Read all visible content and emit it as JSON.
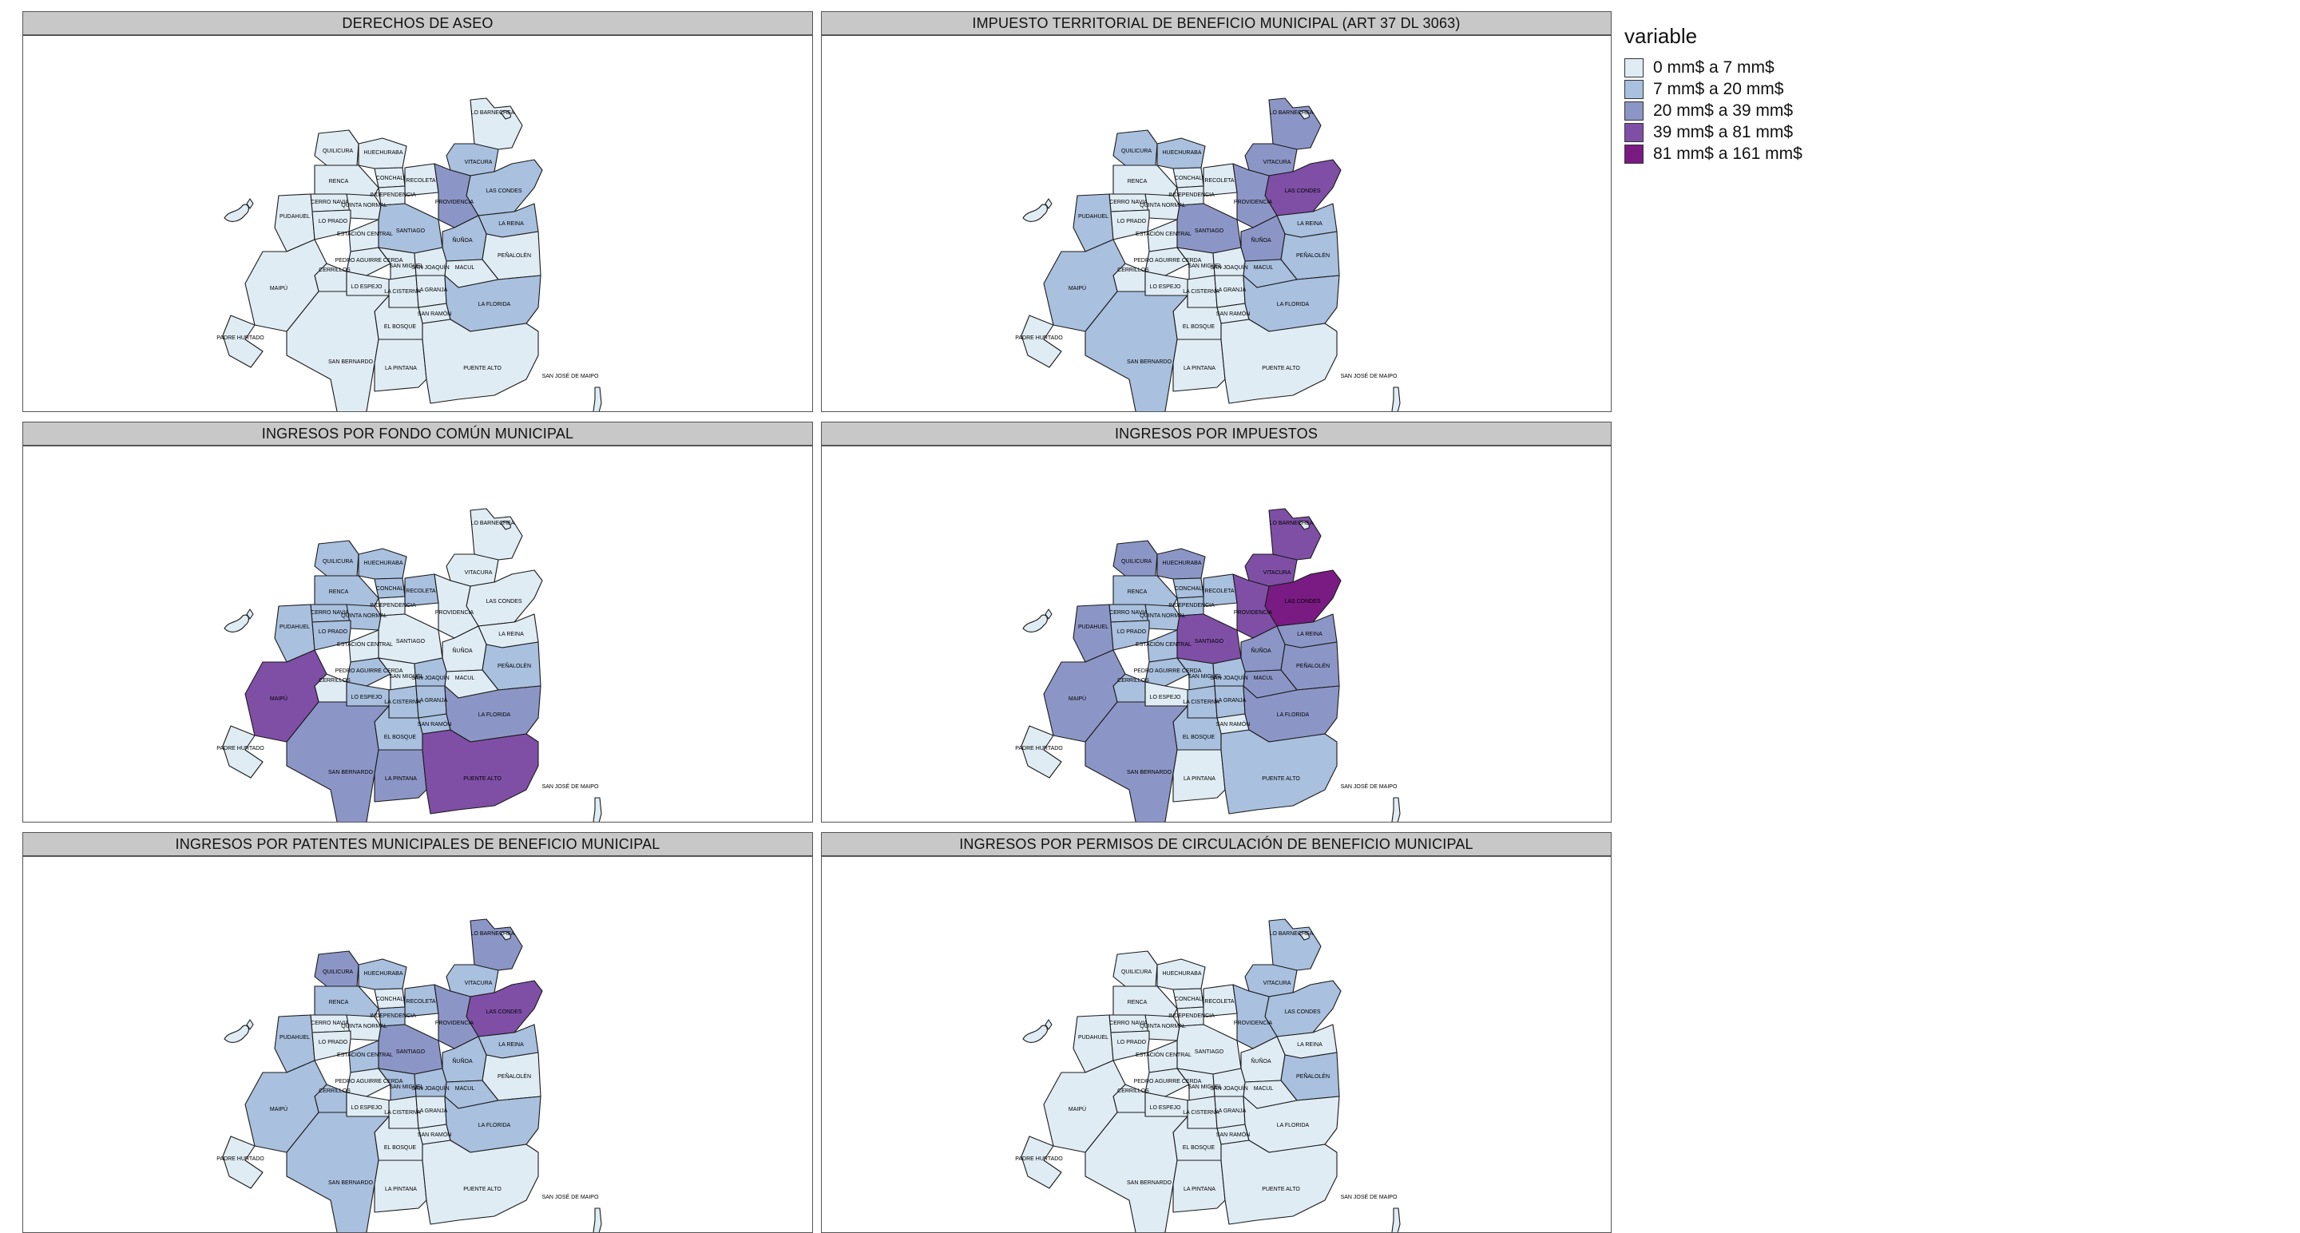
{
  "legend": {
    "title": "variable",
    "classes": [
      {
        "label": "0 mm$ a 7 mm$",
        "color": "#e0ecf4"
      },
      {
        "label": "7 mm$ a 20 mm$",
        "color": "#a9c0de"
      },
      {
        "label": "20 mm$ a 39 mm$",
        "color": "#8c96c6"
      },
      {
        "label": "39 mm$ a 81 mm$",
        "color": "#7f4fa6"
      },
      {
        "label": "81 mm$ a 161 mm$",
        "color": "#7a1b84"
      }
    ]
  },
  "communes": [
    {
      "id": "LB",
      "label": "LO BARNECHEA"
    },
    {
      "id": "QU",
      "label": "QUILICURA"
    },
    {
      "id": "HU",
      "label": "HUECHURABA"
    },
    {
      "id": "CO",
      "label": "CONCHALÍ"
    },
    {
      "id": "VI",
      "label": "VITACURA"
    },
    {
      "id": "RE",
      "label": "RECOLETA"
    },
    {
      "id": "LC",
      "label": "LAS CONDES"
    },
    {
      "id": "RN",
      "label": "RENCA"
    },
    {
      "id": "IN",
      "label": "INDEPENDENCIA"
    },
    {
      "id": "CN",
      "label": "CERRO NAVIA"
    },
    {
      "id": "QN",
      "label": "QUINTA NORMAL"
    },
    {
      "id": "PR",
      "label": "PROVIDENCIA"
    },
    {
      "id": "PU",
      "label": "PUDAHUEL"
    },
    {
      "id": "LP",
      "label": "LO PRADO"
    },
    {
      "id": "SA",
      "label": "SANTIAGO"
    },
    {
      "id": "LR",
      "label": "LA REINA"
    },
    {
      "id": "EC",
      "label": "ESTACIÓN CENTRAL"
    },
    {
      "id": "NU",
      "label": "ÑUÑOA"
    },
    {
      "id": "PE",
      "label": "PEÑALOLÉN"
    },
    {
      "id": "PAC",
      "label": "PEDRO AGUIRRE CERDA"
    },
    {
      "id": "CE",
      "label": "CERRILLOS"
    },
    {
      "id": "SMI",
      "label": "SAN MIGUEL"
    },
    {
      "id": "MA",
      "label": "MACUL"
    },
    {
      "id": "SJO",
      "label": "SAN JOAQUÍN"
    },
    {
      "id": "MP",
      "label": "MAIPÚ"
    },
    {
      "id": "LE",
      "label": "LO ESPEJO"
    },
    {
      "id": "LCI",
      "label": "LA CISTERNA"
    },
    {
      "id": "LG",
      "label": "LA GRANJA"
    },
    {
      "id": "SR",
      "label": "SAN RAMÓN"
    },
    {
      "id": "LF",
      "label": "LA FLORIDA"
    },
    {
      "id": "PH",
      "label": "PADRE HURTADO"
    },
    {
      "id": "EB",
      "label": "EL BOSQUE"
    },
    {
      "id": "SB",
      "label": "SAN BERNARDO"
    },
    {
      "id": "LPI",
      "label": "LA PINTANA"
    },
    {
      "id": "PA",
      "label": "PUENTE ALTO"
    },
    {
      "id": "SJM",
      "label": "SAN JOSÉ DE MAIPO"
    }
  ],
  "panels": [
    {
      "title": "DERECHOS DE ASEO",
      "classes": {
        "LB": 0,
        "QU": 0,
        "HU": 0,
        "CO": 0,
        "VI": 1,
        "RE": 0,
        "LC": 1,
        "RN": 0,
        "IN": 0,
        "CN": 0,
        "QN": 0,
        "PR": 2,
        "PU": 0,
        "LP": 0,
        "SA": 1,
        "LR": 1,
        "EC": 0,
        "NU": 1,
        "PE": 0,
        "PAC": 0,
        "CE": 0,
        "SMI": 0,
        "MA": 0,
        "SJO": 0,
        "MP": 0,
        "LE": 0,
        "LCI": 0,
        "LG": 0,
        "SR": 0,
        "LF": 1,
        "PH": 0,
        "EB": 0,
        "SB": 0,
        "LPI": 0,
        "PA": 0,
        "SJM": 0
      }
    },
    {
      "title": "IMPUESTO TERRITORIAL DE BENEFICIO MUNICIPAL (ART 37 DL 3063)",
      "classes": {
        "LB": 2,
        "QU": 1,
        "HU": 1,
        "CO": 0,
        "VI": 2,
        "RE": 0,
        "LC": 3,
        "RN": 0,
        "IN": 0,
        "CN": 0,
        "QN": 0,
        "PR": 2,
        "PU": 1,
        "LP": 0,
        "SA": 2,
        "LR": 1,
        "EC": 0,
        "NU": 2,
        "PE": 1,
        "PAC": 0,
        "CE": 0,
        "SMI": 0,
        "MA": 1,
        "SJO": 0,
        "MP": 1,
        "LE": 0,
        "LCI": 0,
        "LG": 0,
        "SR": 0,
        "LF": 1,
        "PH": 0,
        "EB": 0,
        "SB": 1,
        "LPI": 0,
        "PA": 0,
        "SJM": 0
      }
    },
    {
      "title": "INGRESOS POR FONDO COMÚN MUNICIPAL",
      "classes": {
        "LB": 0,
        "QU": 1,
        "HU": 1,
        "CO": 1,
        "VI": 0,
        "RE": 1,
        "LC": 0,
        "RN": 1,
        "IN": 0,
        "CN": 1,
        "QN": 1,
        "PR": 0,
        "PU": 1,
        "LP": 1,
        "SA": 0,
        "LR": 0,
        "EC": 0,
        "NU": 0,
        "PE": 1,
        "PAC": 1,
        "CE": 0,
        "SMI": 0,
        "MA": 0,
        "SJO": 1,
        "MP": 3,
        "LE": 1,
        "LCI": 1,
        "LG": 1,
        "SR": 1,
        "LF": 2,
        "PH": 0,
        "EB": 1,
        "SB": 2,
        "LPI": 2,
        "PA": 3,
        "SJM": 0
      }
    },
    {
      "title": "INGRESOS POR IMPUESTOS",
      "classes": {
        "LB": 3,
        "QU": 2,
        "HU": 2,
        "CO": 1,
        "VI": 3,
        "RE": 1,
        "LC": 4,
        "RN": 1,
        "IN": 1,
        "CN": 1,
        "QN": 1,
        "PR": 3,
        "PU": 2,
        "LP": 1,
        "SA": 3,
        "LR": 2,
        "EC": 1,
        "NU": 2,
        "PE": 2,
        "PAC": 1,
        "CE": 1,
        "SMI": 1,
        "MA": 2,
        "SJO": 1,
        "MP": 2,
        "LE": 0,
        "LCI": 1,
        "LG": 1,
        "SR": 0,
        "LF": 2,
        "PH": 0,
        "EB": 1,
        "SB": 2,
        "LPI": 0,
        "PA": 1,
        "SJM": 0
      }
    },
    {
      "title": "INGRESOS POR PATENTES MUNICIPALES DE BENEFICIO MUNICIPAL",
      "classes": {
        "LB": 2,
        "QU": 2,
        "HU": 1,
        "CO": 0,
        "VI": 1,
        "RE": 1,
        "LC": 3,
        "RN": 1,
        "IN": 1,
        "CN": 0,
        "QN": 0,
        "PR": 2,
        "PU": 1,
        "LP": 0,
        "SA": 2,
        "LR": 1,
        "EC": 1,
        "NU": 1,
        "PE": 0,
        "PAC": 0,
        "CE": 1,
        "SMI": 1,
        "MA": 1,
        "SJO": 1,
        "MP": 1,
        "LE": 0,
        "LCI": 0,
        "LG": 0,
        "SR": 0,
        "LF": 1,
        "PH": 0,
        "EB": 0,
        "SB": 1,
        "LPI": 0,
        "PA": 0,
        "SJM": 0
      }
    },
    {
      "title": "INGRESOS POR PERMISOS DE CIRCULACIÓN DE BENEFICIO MUNICIPAL",
      "classes": {
        "LB": 1,
        "QU": 0,
        "HU": 0,
        "CO": 0,
        "VI": 1,
        "RE": 0,
        "LC": 1,
        "RN": 0,
        "IN": 0,
        "CN": 0,
        "QN": 0,
        "PR": 1,
        "PU": 0,
        "LP": 0,
        "SA": 0,
        "LR": 0,
        "EC": 0,
        "NU": 0,
        "PE": 1,
        "PAC": 0,
        "CE": 0,
        "SMI": 0,
        "MA": 0,
        "SJO": 0,
        "MP": 0,
        "LE": 0,
        "LCI": 0,
        "LG": 0,
        "SR": 0,
        "LF": 0,
        "PH": 0,
        "EB": 0,
        "SB": 0,
        "LPI": 0,
        "PA": 0,
        "SJM": 0
      }
    }
  ]
}
